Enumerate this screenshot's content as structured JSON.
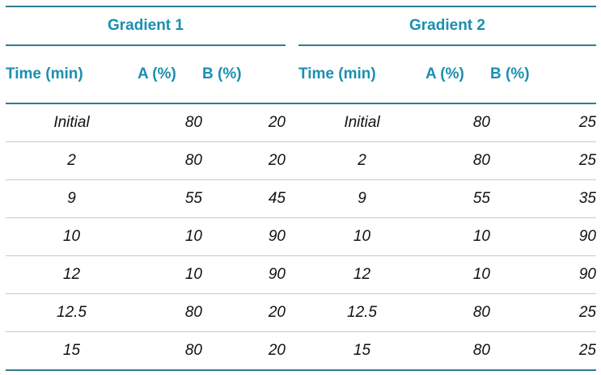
{
  "groups": {
    "gradient1": "Gradient 1",
    "gradient2": "Gradient 2"
  },
  "columns": {
    "time": "Time (min)",
    "a": "A (%)",
    "b": "B (%)"
  },
  "rows": [
    {
      "time": "Initial",
      "a1": "80",
      "b1": "20",
      "a2": "80",
      "b2": "25"
    },
    {
      "time": "2",
      "a1": "80",
      "b1": "20",
      "a2": "80",
      "b2": "25"
    },
    {
      "time": "9",
      "a1": "55",
      "b1": "45",
      "a2": "55",
      "b2": "35"
    },
    {
      "time": "10",
      "a1": "10",
      "b1": "90",
      "a2": "10",
      "b2": "90"
    },
    {
      "time": "12",
      "a1": "10",
      "b1": "90",
      "a2": "10",
      "b2": "90"
    },
    {
      "time": "12.5",
      "a1": "80",
      "b1": "20",
      "a2": "80",
      "b2": "25"
    },
    {
      "time": "15",
      "a1": "80",
      "b1": "20",
      "a2": "80",
      "b2": "25"
    }
  ],
  "colors": {
    "header_text": "#1a8fb0",
    "rule": "#2e7d93",
    "row_divider": "#c9c9c9"
  }
}
